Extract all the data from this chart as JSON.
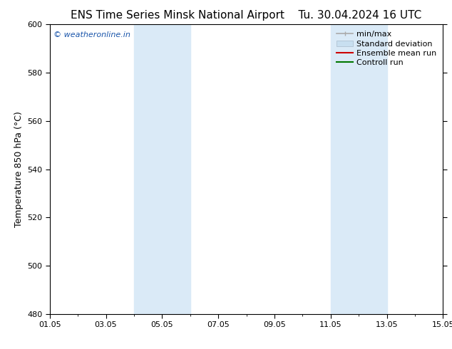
{
  "title_left": "ENS Time Series Minsk National Airport",
  "title_right": "Tu. 30.04.2024 16 UTC",
  "ylabel": "Temperature 850 hPa (°C)",
  "ylim": [
    480,
    600
  ],
  "yticks": [
    480,
    500,
    520,
    540,
    560,
    580,
    600
  ],
  "xtick_labels": [
    "01.05",
    "03.05",
    "05.05",
    "07.05",
    "09.05",
    "11.05",
    "13.05",
    "15.05"
  ],
  "xtick_positions": [
    0,
    2,
    4,
    6,
    8,
    10,
    12,
    14
  ],
  "xlim": [
    0,
    14
  ],
  "bg_color": "#ffffff",
  "plot_bg_color": "#ffffff",
  "watermark": "© weatheronline.in",
  "watermark_color": "#1a55aa",
  "shaded_bands": [
    {
      "x_start": 3.0,
      "x_end": 5.0,
      "color": "#daeaf7"
    },
    {
      "x_start": 10.0,
      "x_end": 12.0,
      "color": "#daeaf7"
    }
  ],
  "legend_items": [
    {
      "label": "min/max",
      "color": "#aaaaaa",
      "lw": 1.2,
      "marker": "|"
    },
    {
      "label": "Standard deviation",
      "color": "#c8dff0",
      "patch": true
    },
    {
      "label": "Ensemble mean run",
      "color": "#cc0000",
      "lw": 1.5
    },
    {
      "label": "Controll run",
      "color": "#007700",
      "lw": 1.5
    }
  ],
  "title_fontsize": 11,
  "ylabel_fontsize": 9,
  "tick_fontsize": 8,
  "legend_fontsize": 8
}
